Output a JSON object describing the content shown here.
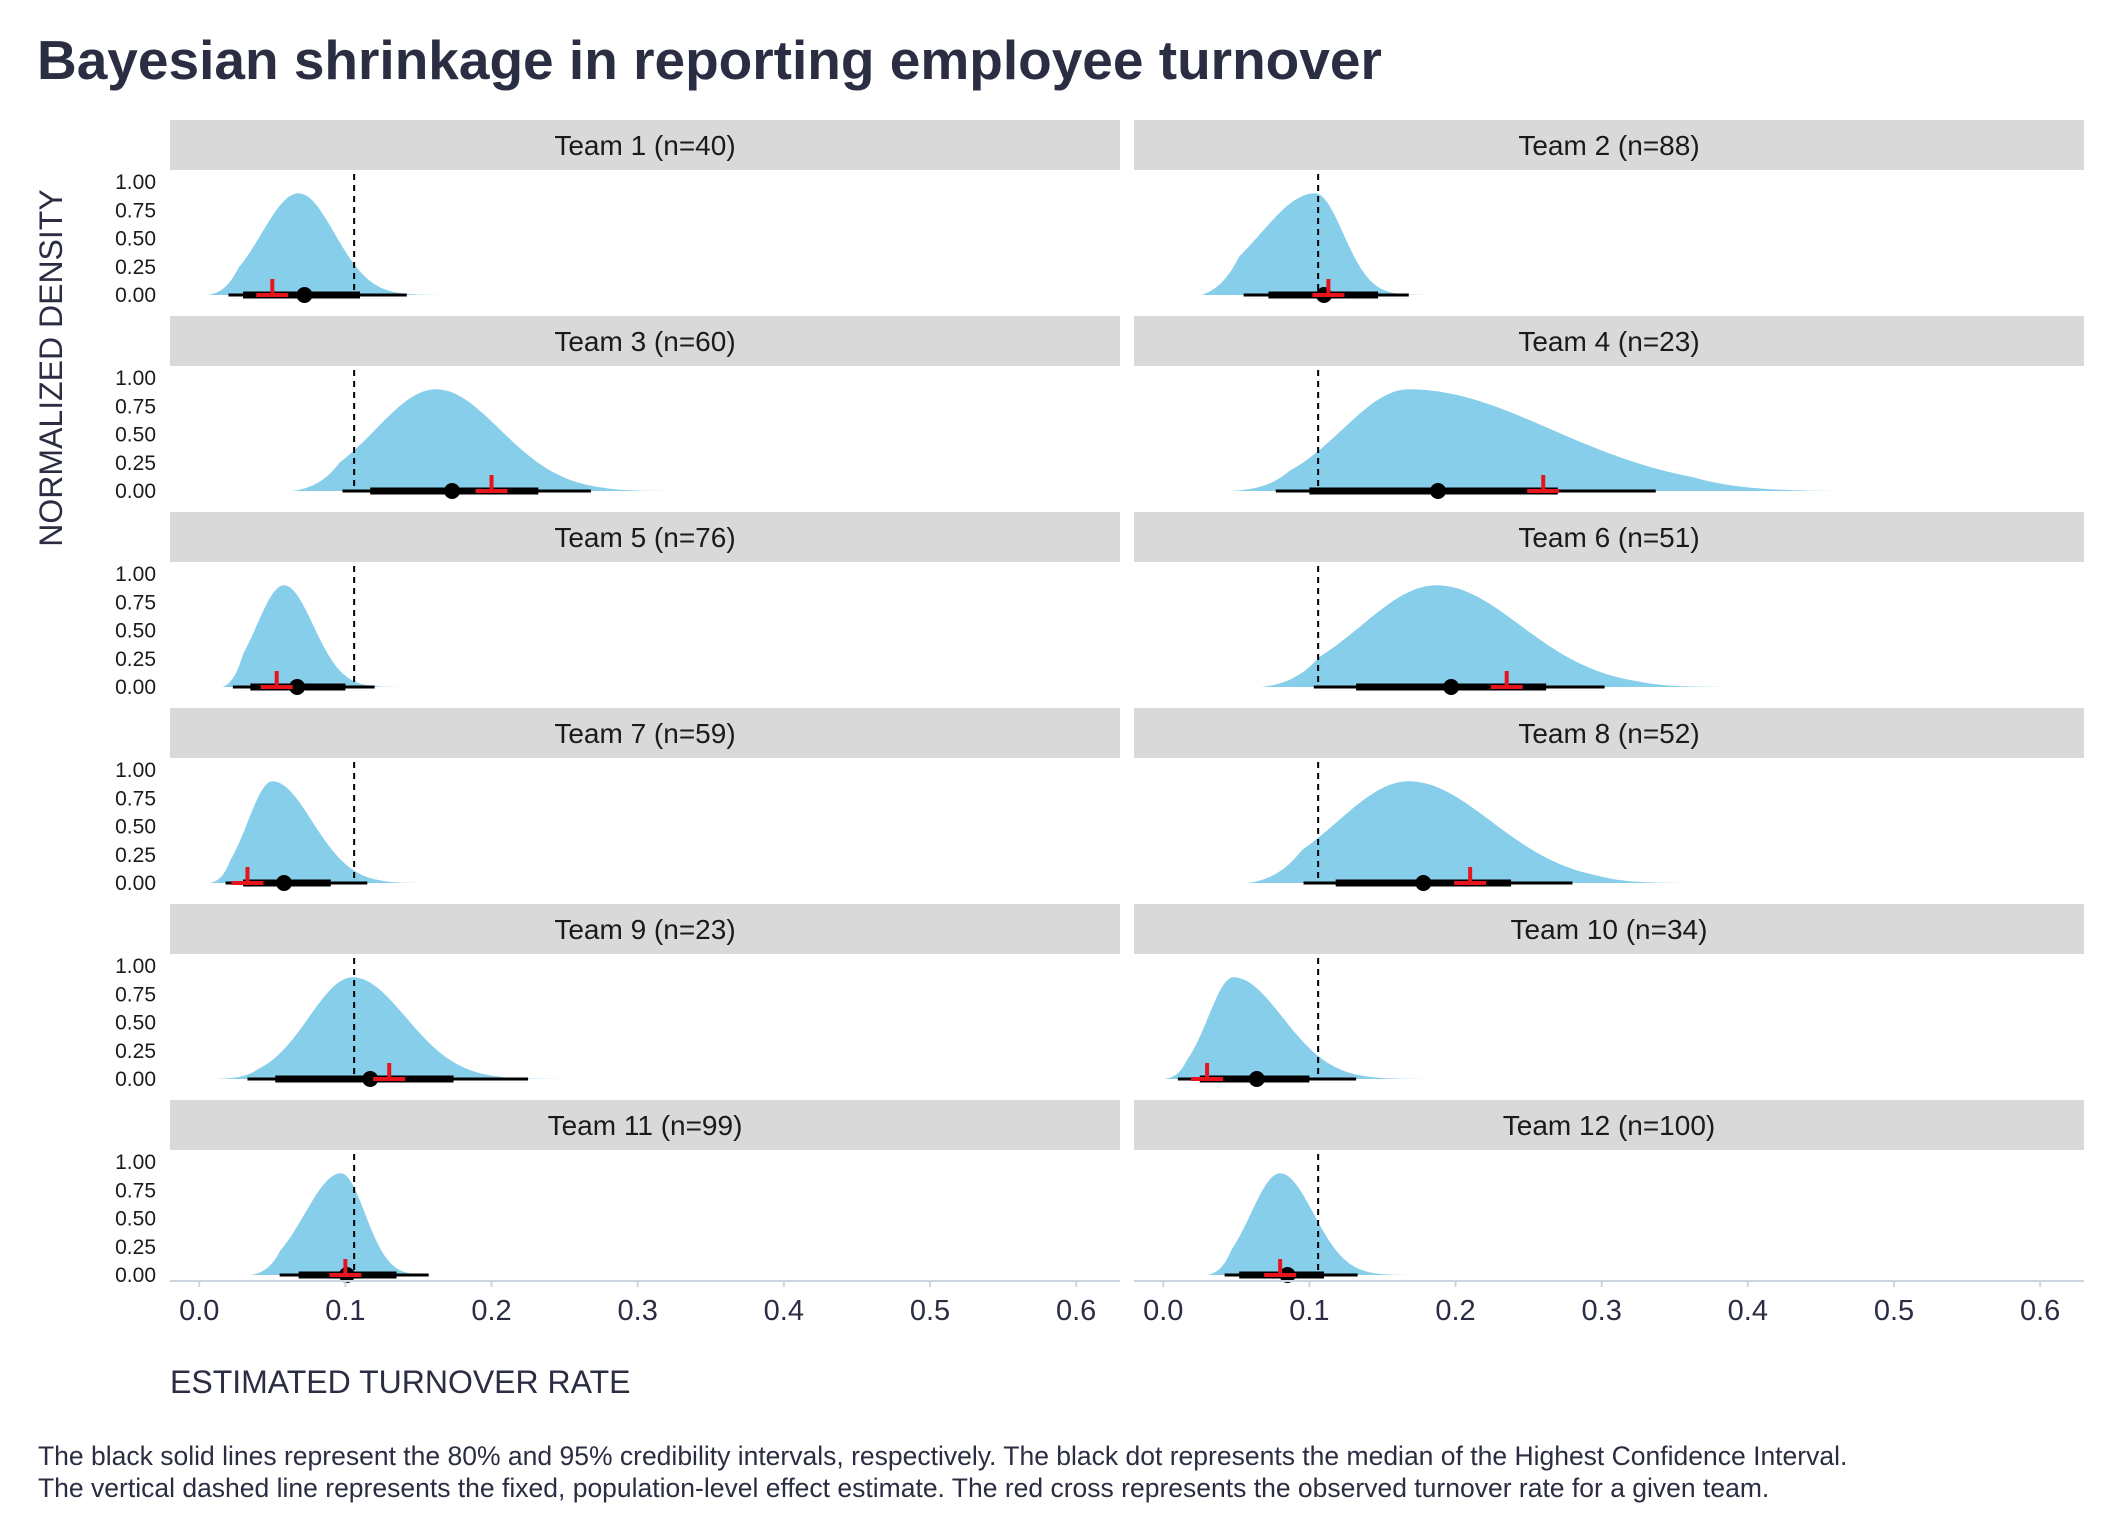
{
  "title": "Bayesian shrinkage in reporting employee turnover",
  "caption": {
    "line1": "The black solid lines represent the 80% and 95% credibility intervals, respectively. The black dot represents the median of the Highest Confidence Interval.",
    "line2": "The vertical dashed line represents the fixed, population-level effect estimate. The red cross represents the observed turnover rate for a given team."
  },
  "colors": {
    "density_fill": "#87CEEB",
    "strip_bg": "#d9d9d9",
    "interval": "#000000",
    "observed_cross": "#e8141c",
    "text": "#2b2d42"
  },
  "chart_data": {
    "type": "area",
    "subtype": "faceted posterior density (half-eye) plot",
    "xlabel": "ESTIMATED TURNOVER RATE",
    "ylabel": "NORMALIZED DENSITY",
    "xlim": [
      -0.02,
      0.63
    ],
    "ylim": [
      0,
      1
    ],
    "x_ticks": [
      "0.0",
      "0.1",
      "0.2",
      "0.3",
      "0.4",
      "0.5",
      "0.6"
    ],
    "x_tick_values": [
      0,
      0.1,
      0.2,
      0.3,
      0.4,
      0.5,
      0.6
    ],
    "y_ticks": [
      "0.00",
      "0.25",
      "0.50",
      "0.75",
      "1.00"
    ],
    "y_tick_values": [
      0,
      0.25,
      0.5,
      0.75,
      1.0
    ],
    "population_estimate": 0.106,
    "panels": [
      {
        "label": "Team 1 (n=40)",
        "dist": {
          "min": 0.006,
          "lo": 0.03,
          "mode": 0.068,
          "hi": 0.095,
          "max": 0.253,
          "peak": 0.9
        },
        "ci95": [
          0.02,
          0.142
        ],
        "ci80": [
          0.03,
          0.11
        ],
        "median": 0.072,
        "observed": 0.05
      },
      {
        "label": "Team 2 (n=88)",
        "dist": {
          "min": 0.026,
          "lo": 0.048,
          "mode": 0.104,
          "hi": 0.125,
          "max": 0.27,
          "peak": 0.9
        },
        "ci95": [
          0.055,
          0.168
        ],
        "ci80": [
          0.072,
          0.147
        ],
        "median": 0.11,
        "observed": 0.113
      },
      {
        "label": "Team 3 (n=60)",
        "dist": {
          "min": 0.063,
          "lo": 0.1,
          "mode": 0.162,
          "hi": 0.21,
          "max": 0.335,
          "peak": 0.9
        },
        "ci95": [
          0.098,
          0.268
        ],
        "ci80": [
          0.117,
          0.232
        ],
        "median": 0.173,
        "observed": 0.2
      },
      {
        "label": "Team 4 (n=23)",
        "dist": {
          "min": 0.045,
          "lo": 0.1,
          "mode": 0.168,
          "hi": 0.275,
          "max": 0.46,
          "peak": 0.9
        },
        "ci95": [
          0.077,
          0.337
        ],
        "ci80": [
          0.1,
          0.27
        ],
        "median": 0.188,
        "observed": 0.26
      },
      {
        "label": "Team 5 (n=76)",
        "dist": {
          "min": 0.016,
          "lo": 0.03,
          "mode": 0.058,
          "hi": 0.08,
          "max": 0.168,
          "peak": 0.9
        },
        "ci95": [
          0.023,
          0.12
        ],
        "ci80": [
          0.035,
          0.1
        ],
        "median": 0.067,
        "observed": 0.053
      },
      {
        "label": "Team 6 (n=51)",
        "dist": {
          "min": 0.067,
          "lo": 0.11,
          "mode": 0.187,
          "hi": 0.25,
          "max": 0.395,
          "peak": 0.9
        },
        "ci95": [
          0.103,
          0.302
        ],
        "ci80": [
          0.132,
          0.262
        ],
        "median": 0.197,
        "observed": 0.235
      },
      {
        "label": "Team 7 (n=59)",
        "dist": {
          "min": 0.007,
          "lo": 0.025,
          "mode": 0.05,
          "hi": 0.08,
          "max": 0.163,
          "peak": 0.9
        },
        "ci95": [
          0.018,
          0.115
        ],
        "ci80": [
          0.03,
          0.09
        ],
        "median": 0.058,
        "observed": 0.033
      },
      {
        "label": "Team 8 (n=52)",
        "dist": {
          "min": 0.058,
          "lo": 0.095,
          "mode": 0.168,
          "hi": 0.23,
          "max": 0.362,
          "peak": 0.9
        },
        "ci95": [
          0.096,
          0.28
        ],
        "ci80": [
          0.118,
          0.238
        ],
        "median": 0.178,
        "observed": 0.21
      },
      {
        "label": "Team 9 (n=23)",
        "dist": {
          "min": 0.008,
          "lo": 0.06,
          "mode": 0.105,
          "hi": 0.145,
          "max": 0.335,
          "peak": 0.9
        },
        "ci95": [
          0.033,
          0.225
        ],
        "ci80": [
          0.052,
          0.174
        ],
        "median": 0.117,
        "observed": 0.13
      },
      {
        "label": "Team 10 (n=34)",
        "dist": {
          "min": 0.0,
          "lo": 0.022,
          "mode": 0.048,
          "hi": 0.085,
          "max": 0.22,
          "peak": 0.9
        },
        "ci95": [
          0.01,
          0.132
        ],
        "ci80": [
          0.025,
          0.1
        ],
        "median": 0.064,
        "observed": 0.03
      },
      {
        "label": "Team 11 (n=99)",
        "dist": {
          "min": 0.035,
          "lo": 0.06,
          "mode": 0.097,
          "hi": 0.115,
          "max": 0.216,
          "peak": 0.9
        },
        "ci95": [
          0.055,
          0.157
        ],
        "ci80": [
          0.068,
          0.135
        ],
        "median": 0.101,
        "observed": 0.1
      },
      {
        "label": "Team 12 (n=100)",
        "dist": {
          "min": 0.03,
          "lo": 0.05,
          "mode": 0.08,
          "hi": 0.105,
          "max": 0.19,
          "peak": 0.9
        },
        "ci95": [
          0.042,
          0.133
        ],
        "ci80": [
          0.052,
          0.11
        ],
        "median": 0.085,
        "observed": 0.08
      }
    ]
  }
}
